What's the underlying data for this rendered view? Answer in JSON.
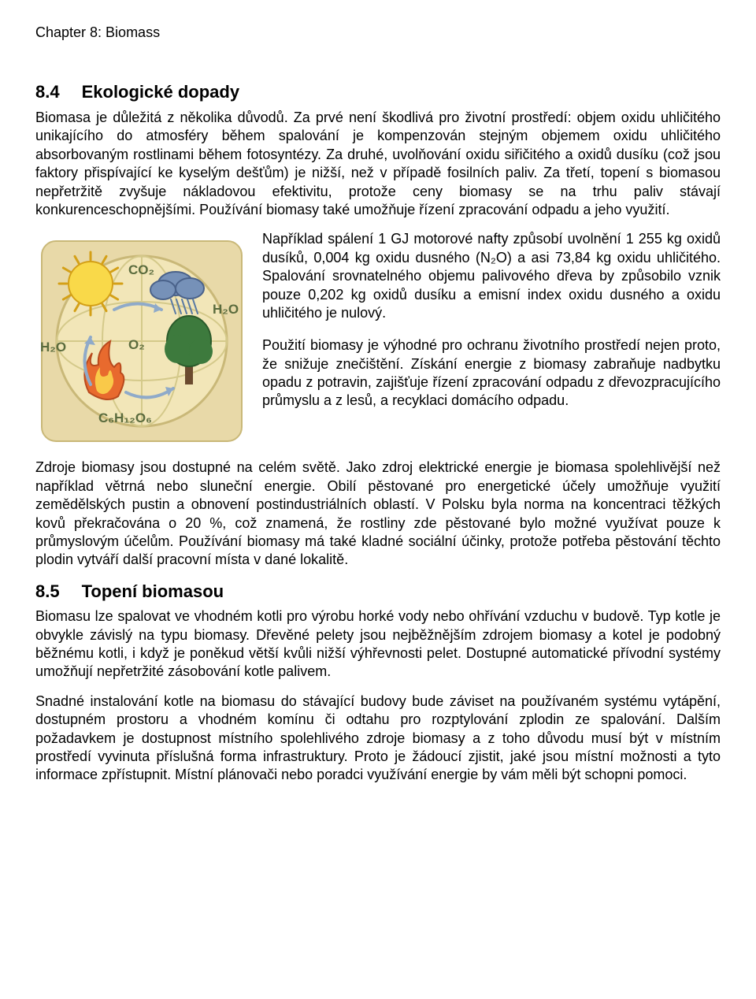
{
  "chapter_header": "Chapter 8: Biomass",
  "section_84": {
    "number": "8.4",
    "title": "Ekologické dopady",
    "para1": "Biomasa je důležitá z několika důvodů. Za prvé není škodlivá pro životní prostředí: objem oxidu uhličitého unikajícího do atmosféry během spalování je kompenzován stejným objemem oxidu uhličitého absorbovaným rostlinami během fotosyntézy. Za druhé, uvolňování oxidu siřičitého a oxidů dusíku (což jsou faktory přispívající ke kyselým dešťům) je nižší, než v případě fosilních paliv. Za třetí, topení s biomasou nepřetržitě zvyšuje nákladovou efektivitu, protože ceny biomasy se na trhu paliv stávají konkurenceschopnějšími. Používání biomasy také umožňuje řízení zpracování odpadu a jeho využití.",
    "para2": "Například spálení 1 GJ motorové nafty způsobí uvolnění 1 255 kg oxidů dusíků, 0,004 kg oxidu dusného (N₂O) a asi 73,84 kg oxidu uhličitého. Spalování srovnatelného objemu palivového dřeva by způsobilo vznik pouze 0,202 kg oxidů dusíku a emisní index oxidu dusného a oxidu uhličitého je nulový.",
    "para3": "Použití biomasy je výhodné pro ochranu životního prostředí nejen proto, že snižuje znečištění. Získání energie z biomasy zabraňuje nadbytku opadu z potravin, zajišťuje řízení zpracování odpadu z dřevozpracujícího průmyslu a z lesů, a recyklaci domácího odpadu.",
    "para4": "Zdroje biomasy jsou dostupné na celém světě. Jako zdroj elektrické energie je biomasa spolehlivější než například větrná nebo sluneční energie. Obilí pěstované pro energetické účely umožňuje využití zemědělských pustin a obnovení postindustriálních oblastí. V Polsku byla norma na koncentraci těžkých kovů překračována o 20 %, což znamená, že rostliny zde pěstované bylo možné využívat pouze k průmyslovým účelům. Používání biomasy má také kladné sociální účinky, protože potřeba pěstování těchto plodin vytváří další pracovní místa v dané lokalitě."
  },
  "section_85": {
    "number": "8.5",
    "title": "Topení biomasou",
    "para1": "Biomasu lze spalovat ve vhodném kotli pro výrobu horké vody nebo ohřívání vzduchu v budově. Typ kotle je obvykle závislý na typu biomasy. Dřevěné pelety jsou nejběžnějším zdrojem biomasy a kotel je podobný běžnému kotli, i když je poněkud větší kvůli nižší výhřevnosti pelet. Dostupné automatické přívodní systémy umožňují nepřetržité zásobování kotle palivem.",
    "para2": "Snadné instalování kotle na biomasu do stávající budovy bude záviset na používaném systému vytápění, dostupném prostoru a vhodném komínu či odtahu pro rozptylování zplodin ze spalování. Dalším požadavkem je dostupnost místního spolehlivého zdroje biomasy a z toho důvodu musí být v místním prostředí vyvinuta příslušná forma infrastruktury. Proto je žádoucí zjistit, jaké jsou místní možnosti a tyto informace zpřístupnit. Místní plánovači nebo poradci využívání energie by vám měli být schopni pomoci."
  },
  "diagram": {
    "labels": {
      "co2": "CO₂",
      "h2o_left": "H₂O",
      "h2o_right": "H₂O",
      "o2": "O₂",
      "glucose": "C₆H₁₂O₆"
    },
    "colors": {
      "background": "#e8d9a8",
      "circle_fill": "#f2e6b8",
      "circle_stroke": "#c9b878",
      "sun_fill": "#f9d949",
      "sun_stroke": "#d4a017",
      "cloud_fill": "#7691b8",
      "cloud_stroke": "#4a628a",
      "rain": "#5a7aa3",
      "tree_crown": "#3d7a3d",
      "tree_trunk": "#6b4a2e",
      "fire_outer": "#e86a2e",
      "fire_inner": "#f9c949",
      "arrow": "#8faac9",
      "grid": "#d4c98a",
      "label_text": "#5a6b3d"
    }
  }
}
